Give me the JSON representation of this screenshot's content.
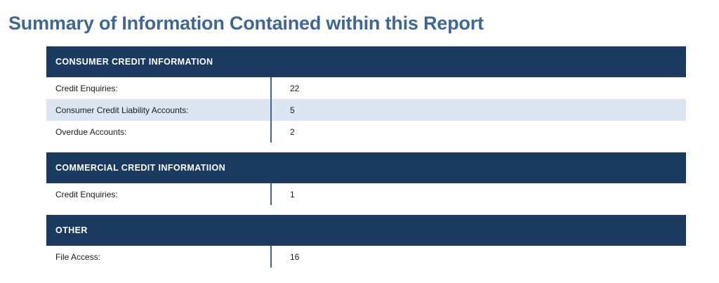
{
  "page_title": "Summary of Information Contained within this Report",
  "sections": [
    {
      "header": "CONSUMER CREDIT INFORMATION",
      "rows": [
        {
          "label": "Credit Enquiries:",
          "value": "22"
        },
        {
          "label": "Consumer Credit Liability Accounts:",
          "value": "5"
        },
        {
          "label": "Overdue Accounts:",
          "value": "2"
        }
      ]
    },
    {
      "header": "COMMERCIAL CREDIT INFORMATIION",
      "rows": [
        {
          "label": "Credit Enquiries:",
          "value": "1"
        }
      ]
    },
    {
      "header": "OTHER",
      "rows": [
        {
          "label": "File Access:",
          "value": "16"
        }
      ]
    }
  ],
  "colors": {
    "title": "#3f6796",
    "header_bg": "#1b3a5f",
    "alt_row_bg": "#dce6f0",
    "divider": "#3f6796"
  }
}
